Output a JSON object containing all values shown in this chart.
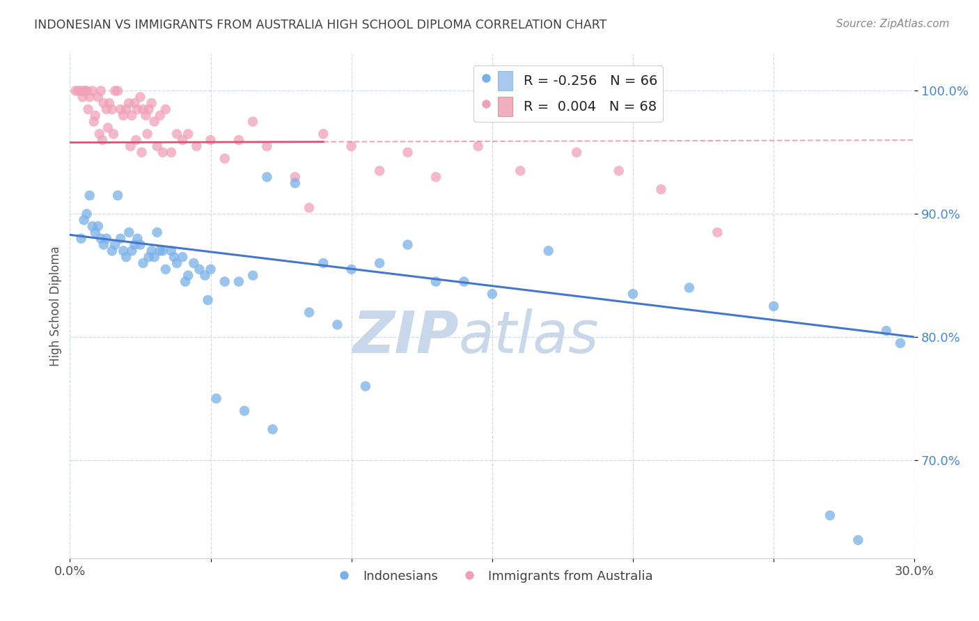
{
  "title": "INDONESIAN VS IMMIGRANTS FROM AUSTRALIA HIGH SCHOOL DIPLOMA CORRELATION CHART",
  "source": "Source: ZipAtlas.com",
  "ylabel": "High School Diploma",
  "xlim": [
    0.0,
    30.0
  ],
  "ylim": [
    62.0,
    103.0
  ],
  "legend_blue_label": "R = -0.256   N = 66",
  "legend_pink_label": "R =  0.004   N = 68",
  "legend_blue_color": "#a8c8f0",
  "legend_pink_color": "#f0b0c0",
  "dot_blue_color": "#7ab0e8",
  "dot_pink_color": "#f0a0b8",
  "line_blue_color": "#4477cc",
  "line_pink_color": "#e05070",
  "watermark_left": "ZIP",
  "watermark_right": "atlas",
  "watermark_color": "#c8d8ea",
  "bg_color": "#ffffff",
  "grid_color": "#d0dae8",
  "title_color": "#404040",
  "axis_label_color": "#505050",
  "ytick_color": "#4488cc",
  "xtick_color": "#505050",
  "blue_points_x": [
    0.4,
    0.5,
    0.6,
    0.7,
    0.8,
    0.9,
    1.0,
    1.1,
    1.2,
    1.3,
    1.5,
    1.6,
    1.7,
    1.8,
    1.9,
    2.0,
    2.1,
    2.2,
    2.3,
    2.4,
    2.5,
    2.6,
    2.8,
    2.9,
    3.0,
    3.2,
    3.4,
    3.6,
    3.8,
    4.0,
    4.2,
    4.4,
    4.6,
    4.8,
    5.0,
    5.5,
    6.0,
    6.5,
    7.0,
    8.0,
    9.0,
    10.0,
    11.0,
    12.0,
    13.0,
    14.0,
    15.0,
    17.0,
    20.0,
    22.0,
    25.0,
    27.0,
    28.0,
    29.0,
    29.5,
    8.5,
    9.5,
    10.5,
    5.2,
    6.2,
    7.2,
    3.1,
    3.3,
    3.7,
    4.1,
    4.9
  ],
  "blue_points_y": [
    88.0,
    89.5,
    90.0,
    91.5,
    89.0,
    88.5,
    89.0,
    88.0,
    87.5,
    88.0,
    87.0,
    87.5,
    91.5,
    88.0,
    87.0,
    86.5,
    88.5,
    87.0,
    87.5,
    88.0,
    87.5,
    86.0,
    86.5,
    87.0,
    86.5,
    87.0,
    85.5,
    87.0,
    86.0,
    86.5,
    85.0,
    86.0,
    85.5,
    85.0,
    85.5,
    84.5,
    84.5,
    85.0,
    93.0,
    92.5,
    86.0,
    85.5,
    86.0,
    87.5,
    84.5,
    84.5,
    83.5,
    87.0,
    83.5,
    84.0,
    82.5,
    65.5,
    63.5,
    80.5,
    79.5,
    82.0,
    81.0,
    76.0,
    75.0,
    74.0,
    72.5,
    88.5,
    87.0,
    86.5,
    84.5,
    83.0
  ],
  "pink_points_x": [
    0.2,
    0.3,
    0.4,
    0.5,
    0.6,
    0.7,
    0.8,
    0.9,
    1.0,
    1.1,
    1.2,
    1.3,
    1.4,
    1.5,
    1.6,
    1.7,
    1.8,
    1.9,
    2.0,
    2.1,
    2.2,
    2.3,
    2.4,
    2.5,
    2.6,
    2.7,
    2.8,
    2.9,
    3.0,
    3.2,
    3.4,
    3.6,
    3.8,
    4.0,
    4.2,
    4.5,
    5.0,
    5.5,
    6.0,
    6.5,
    7.0,
    8.0,
    9.0,
    10.0,
    11.0,
    12.0,
    13.0,
    14.5,
    16.0,
    18.0,
    19.5,
    21.0,
    23.0,
    1.15,
    1.35,
    1.55,
    0.65,
    0.85,
    1.05,
    0.45,
    0.55,
    2.15,
    2.35,
    2.55,
    2.75,
    3.1,
    3.3,
    8.5
  ],
  "pink_points_y": [
    100.0,
    100.0,
    100.0,
    100.0,
    100.0,
    99.5,
    100.0,
    98.0,
    99.5,
    100.0,
    99.0,
    98.5,
    99.0,
    98.5,
    100.0,
    100.0,
    98.5,
    98.0,
    98.5,
    99.0,
    98.0,
    99.0,
    98.5,
    99.5,
    98.5,
    98.0,
    98.5,
    99.0,
    97.5,
    98.0,
    98.5,
    95.0,
    96.5,
    96.0,
    96.5,
    95.5,
    96.0,
    94.5,
    96.0,
    97.5,
    95.5,
    93.0,
    96.5,
    95.5,
    93.5,
    95.0,
    93.0,
    95.5,
    93.5,
    95.0,
    93.5,
    92.0,
    88.5,
    96.0,
    97.0,
    96.5,
    98.5,
    97.5,
    96.5,
    99.5,
    100.0,
    95.5,
    96.0,
    95.0,
    96.5,
    95.5,
    95.0,
    90.5
  ],
  "blue_line_x": [
    0.0,
    30.0
  ],
  "blue_line_y": [
    88.3,
    80.0
  ],
  "pink_line_x": [
    0.0,
    30.0
  ],
  "pink_line_y": [
    95.8,
    96.0
  ]
}
